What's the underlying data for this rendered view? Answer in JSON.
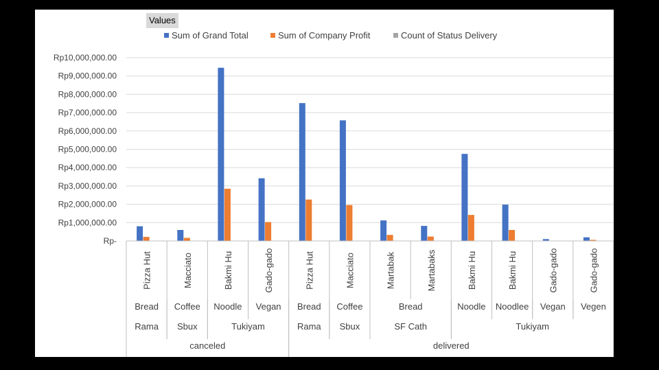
{
  "chart_data": {
    "type": "bar",
    "field_button": "Values",
    "series": [
      {
        "name": "Sum of Grand Total",
        "color": "#4472c4",
        "values": [
          800000,
          600000,
          9450000,
          3420000,
          7520000,
          6580000,
          1120000,
          820000,
          4750000,
          1980000,
          100000,
          200000
        ]
      },
      {
        "name": "Sum of Company Profit",
        "color": "#ed7d31",
        "values": [
          220000,
          170000,
          2850000,
          1030000,
          2260000,
          1960000,
          330000,
          240000,
          1420000,
          600000,
          20000,
          60000
        ]
      },
      {
        "name": "Count of Status Delivery",
        "color": "#a5a5a5",
        "values": [
          1,
          1,
          1,
          1,
          1,
          1,
          1,
          1,
          1,
          1,
          1,
          1
        ]
      }
    ],
    "categories": [
      "Pizza Hut",
      "Macciato",
      "Bakmi Hu",
      "Gado-gado",
      "Pizza Hut",
      "Macciato",
      "Martabak",
      "Martabaks",
      "Bakmi Hu",
      "Bakmi Hu",
      "Gado-gado",
      "Gado-gado"
    ],
    "level2": [
      {
        "label": "Bread",
        "start": 0,
        "span": 1
      },
      {
        "label": "Coffee",
        "start": 1,
        "span": 1
      },
      {
        "label": "Noodle",
        "start": 2,
        "span": 1
      },
      {
        "label": "Vegan",
        "start": 3,
        "span": 1
      },
      {
        "label": "Bread",
        "start": 4,
        "span": 1
      },
      {
        "label": "Coffee",
        "start": 5,
        "span": 1
      },
      {
        "label": "Bread",
        "start": 6,
        "span": 2
      },
      {
        "label": "Noodle",
        "start": 8,
        "span": 1
      },
      {
        "label": "Noodlee",
        "start": 9,
        "span": 1
      },
      {
        "label": "Vegan",
        "start": 10,
        "span": 1
      },
      {
        "label": "Vegen",
        "start": 11,
        "span": 1
      }
    ],
    "level3": [
      {
        "label": "Rama",
        "start": 0,
        "span": 1
      },
      {
        "label": "Sbux",
        "start": 1,
        "span": 1
      },
      {
        "label": "Tukiyam",
        "start": 2,
        "span": 2
      },
      {
        "label": "Rama",
        "start": 4,
        "span": 1
      },
      {
        "label": "Sbux",
        "start": 5,
        "span": 1
      },
      {
        "label": "SF Cath",
        "start": 6,
        "span": 2
      },
      {
        "label": "Tukiyam",
        "start": 8,
        "span": 4
      }
    ],
    "level4": [
      {
        "label": "canceled",
        "start": 0,
        "span": 4
      },
      {
        "label": "delivered",
        "start": 4,
        "span": 8
      }
    ],
    "yticks": [
      {
        "value": 0,
        "label": "Rp-"
      },
      {
        "value": 1000000,
        "label": "Rp1,000,000.00"
      },
      {
        "value": 2000000,
        "label": "Rp2,000,000.00"
      },
      {
        "value": 3000000,
        "label": "Rp3,000,000.00"
      },
      {
        "value": 4000000,
        "label": "Rp4,000,000.00"
      },
      {
        "value": 5000000,
        "label": "Rp5,000,000.00"
      },
      {
        "value": 6000000,
        "label": "Rp6,000,000.00"
      },
      {
        "value": 7000000,
        "label": "Rp7,000,000.00"
      },
      {
        "value": 8000000,
        "label": "Rp8,000,000.00"
      },
      {
        "value": 9000000,
        "label": "Rp9,000,000.00"
      },
      {
        "value": 10000000,
        "label": "Rp10,000,000.00"
      }
    ],
    "ylim": [
      0,
      10000000
    ],
    "grid": true,
    "legend_position": "top"
  }
}
